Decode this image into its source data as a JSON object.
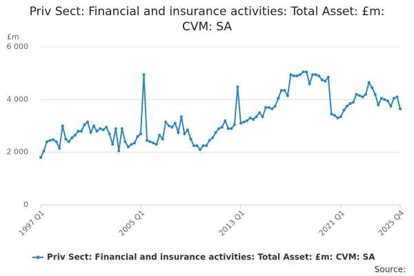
{
  "chart_data": {
    "type": "line",
    "title": "Priv Sect: Financial and insurance activities: Total Asset: £m: CVM: SA",
    "y_label": "£m",
    "source": "Source:",
    "categories": [
      "1997 Q1",
      null,
      null,
      null,
      null,
      null,
      null,
      null,
      null,
      null,
      null,
      null,
      null,
      null,
      null,
      null,
      null,
      null,
      null,
      null,
      null,
      null,
      null,
      null,
      null,
      null,
      null,
      null,
      null,
      null,
      null,
      null,
      "2005 Q1",
      null,
      null,
      null,
      null,
      null,
      null,
      null,
      null,
      null,
      null,
      null,
      null,
      null,
      null,
      null,
      null,
      null,
      null,
      null,
      null,
      null,
      null,
      null,
      null,
      null,
      null,
      null,
      null,
      null,
      null,
      null,
      "2013 Q1",
      null,
      null,
      null,
      null,
      null,
      null,
      null,
      null,
      null,
      null,
      null,
      null,
      null,
      null,
      null,
      null,
      null,
      null,
      null,
      null,
      null,
      null,
      null,
      null,
      null,
      null,
      null,
      null,
      null,
      null,
      null,
      "2021 Q1",
      null,
      null,
      null,
      null,
      null,
      null,
      null,
      null,
      null,
      null,
      null,
      null,
      null,
      null,
      null,
      null,
      null,
      null,
      "2025 Q4"
    ],
    "series": [
      {
        "name": "Priv Sect: Financial and insurance activities: Total Asset: £m: CVM: SA",
        "color": "#2a86bd",
        "values": [
          1800,
          2050,
          2400,
          2450,
          2480,
          2400,
          2150,
          3000,
          2500,
          2400,
          2550,
          2650,
          2800,
          2800,
          3050,
          3150,
          2750,
          3000,
          2800,
          2900,
          2850,
          2950,
          2700,
          2300,
          2900,
          2050,
          2900,
          2400,
          2200,
          2300,
          2350,
          2600,
          2700,
          4950,
          2450,
          2400,
          2350,
          2300,
          2650,
          2500,
          3150,
          3000,
          2950,
          3100,
          2750,
          3350,
          2700,
          2850,
          2500,
          2250,
          2250,
          2100,
          2250,
          2250,
          2450,
          2550,
          2750,
          2900,
          2950,
          3200,
          2900,
          2900,
          3050,
          4480,
          3100,
          3150,
          3200,
          3300,
          3250,
          3350,
          3500,
          3350,
          3700,
          3700,
          3650,
          3750,
          4050,
          4350,
          4350,
          4150,
          4950,
          4900,
          4900,
          4950,
          5050,
          5050,
          4600,
          4950,
          4950,
          4900,
          4750,
          4700,
          4850,
          3450,
          3400,
          3300,
          3350,
          3600,
          3750,
          3850,
          3900,
          4200,
          4150,
          4100,
          4200,
          4650,
          4450,
          4200,
          3800,
          4050,
          4000,
          3950,
          3750,
          4050,
          4100,
          3650
        ]
      }
    ],
    "ylim": [
      0,
      6000
    ],
    "yticks": [
      {
        "value": 0,
        "label": "0"
      },
      {
        "value": 2000,
        "label": "2 000"
      },
      {
        "value": 4000,
        "label": "4 000"
      },
      {
        "value": 6000,
        "label": "6 000"
      }
    ],
    "grid": true
  }
}
